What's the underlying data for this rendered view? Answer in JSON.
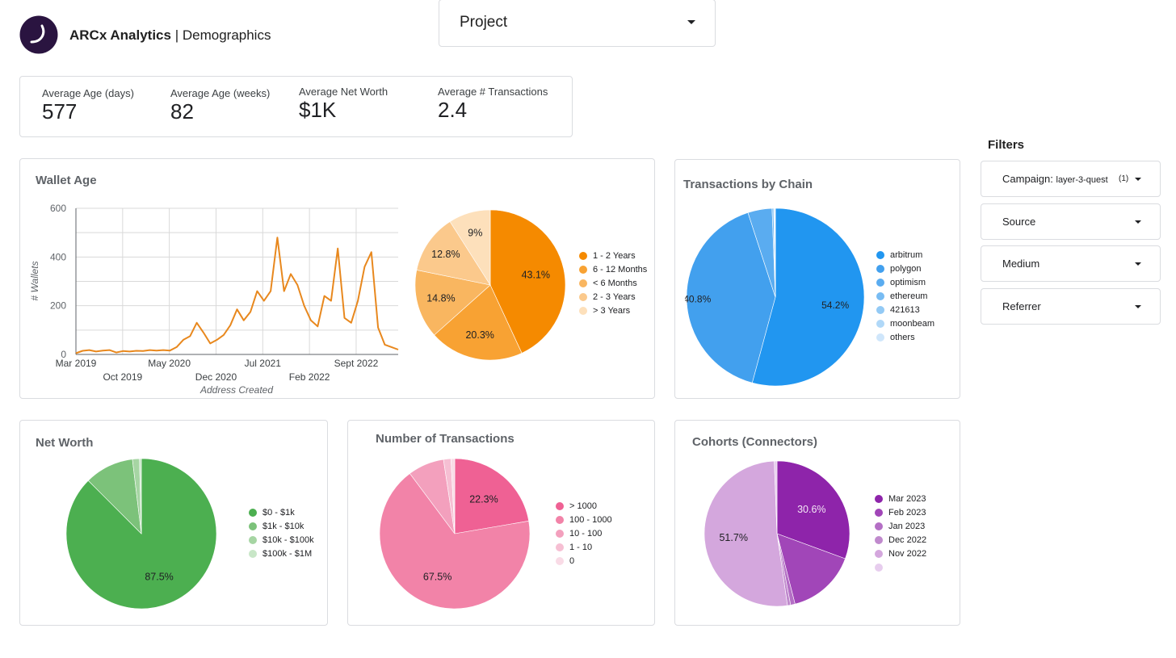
{
  "header": {
    "brand": "ARCx Analytics",
    "separator": "|",
    "page": "Demographics",
    "logo_icon": "arcx-logo-icon"
  },
  "project_select": {
    "label": "Project"
  },
  "kpis": [
    {
      "label": "Average Age (days)",
      "value": "577"
    },
    {
      "label": "Average Age (weeks)",
      "value": "82"
    },
    {
      "label": "Average Net Worth",
      "value": "$1K"
    },
    {
      "label": "Average # Transactions",
      "value": "2.4"
    }
  ],
  "filters": {
    "title": "Filters",
    "campaign": {
      "label": "Campaign",
      "value": "layer-3-quest",
      "count": "(1)"
    },
    "items": [
      "Source",
      "Medium",
      "Referrer"
    ]
  },
  "chart_data": [
    {
      "id": "wallet-age-line",
      "type": "line",
      "title": "Wallet Age",
      "xlabel": "Address Created",
      "ylabel": "# Wallets",
      "ylim": [
        0,
        600
      ],
      "yticks": [
        0,
        200,
        400,
        600
      ],
      "xtick_labels_top": [
        "Mar 2019",
        "May 2020",
        "Jul 2021",
        "Sept 2022"
      ],
      "xtick_labels_bottom": [
        "Oct 2019",
        "Dec 2020",
        "Feb 2022"
      ],
      "grid": true,
      "color": "#e8881e",
      "series": [
        {
          "values": [
            5,
            15,
            18,
            12,
            16,
            18,
            8,
            14,
            12,
            15,
            14,
            18,
            16,
            18,
            16,
            30,
            60,
            75,
            130,
            90,
            45,
            60,
            80,
            120,
            185,
            140,
            175,
            260,
            220,
            260,
            480,
            260,
            330,
            285,
            200,
            140,
            115,
            240,
            220,
            435,
            150,
            130,
            220,
            360,
            420,
            110,
            40,
            30,
            20
          ]
        }
      ]
    },
    {
      "id": "wallet-age-pie",
      "type": "pie",
      "legend_position": "right",
      "categories": [
        "1 - 2 Years",
        "6 - 12 Months",
        "< 6 Months",
        "2 - 3 Years",
        "> 3 Years"
      ],
      "values": [
        43.1,
        20.3,
        14.8,
        12.8,
        9.0
      ],
      "labels": [
        "43.1%",
        "20.3%",
        "14.8%",
        "12.8%",
        "9%"
      ],
      "colors": [
        "#f58a00",
        "#f8a233",
        "#f9b660",
        "#fbc98c",
        "#fde0bb"
      ]
    },
    {
      "id": "tx-by-chain-pie",
      "type": "pie",
      "title": "Transactions by Chain",
      "legend_position": "right",
      "categories": [
        "arbitrum",
        "polygon",
        "optimism",
        "ethereum",
        "421613",
        "moonbeam",
        "others"
      ],
      "values": [
        54.2,
        40.8,
        4.4,
        0.3,
        0.15,
        0.1,
        0.05
      ],
      "labels": [
        "54.2%",
        "40.8%",
        "",
        "",
        "",
        "",
        ""
      ],
      "colors": [
        "#2196f0",
        "#42a0ee",
        "#5aacf0",
        "#78bcf3",
        "#93caf5",
        "#b0d8f8",
        "#cfe6fb"
      ]
    },
    {
      "id": "net-worth-pie",
      "type": "pie",
      "title": "Net Worth",
      "legend_position": "right",
      "categories": [
        "$0 - $1k",
        "$1k - $10k",
        "$10k - $100k",
        "$100k - $1M"
      ],
      "values": [
        87.5,
        10.6,
        1.5,
        0.4
      ],
      "labels": [
        "87.5%",
        "",
        "",
        ""
      ],
      "colors": [
        "#4caf50",
        "#7cc27a",
        "#a6d5a3",
        "#c8e6c7"
      ]
    },
    {
      "id": "num-transactions-pie",
      "type": "pie",
      "title": "Number of Transactions",
      "legend_position": "right",
      "categories": [
        "> 1000",
        "100 - 1000",
        "10 - 100",
        "1 - 10",
        "0"
      ],
      "values": [
        22.3,
        67.5,
        7.8,
        1.6,
        0.8
      ],
      "labels": [
        "22.3%",
        "67.5%",
        "",
        "",
        ""
      ],
      "colors": [
        "#ef6194",
        "#f283a8",
        "#f3a0bd",
        "#f6bfd3",
        "#f9dbe6"
      ]
    },
    {
      "id": "cohorts-pie",
      "type": "pie",
      "title": "Cohorts (Connectors)",
      "legend_position": "right",
      "categories": [
        "Mar 2023",
        "Feb 2023",
        "Jan 2023",
        "Dec 2022",
        "Nov 2022",
        ""
      ],
      "values": [
        30.6,
        15.4,
        1.0,
        0.7,
        51.7,
        0.6
      ],
      "labels": [
        "30.6%",
        "",
        "",
        "",
        "51.7%",
        ""
      ],
      "colors": [
        "#8e24aa",
        "#a146b8",
        "#b46fc5",
        "#c08acd",
        "#d4a7dd",
        "#e7cdee"
      ]
    }
  ]
}
